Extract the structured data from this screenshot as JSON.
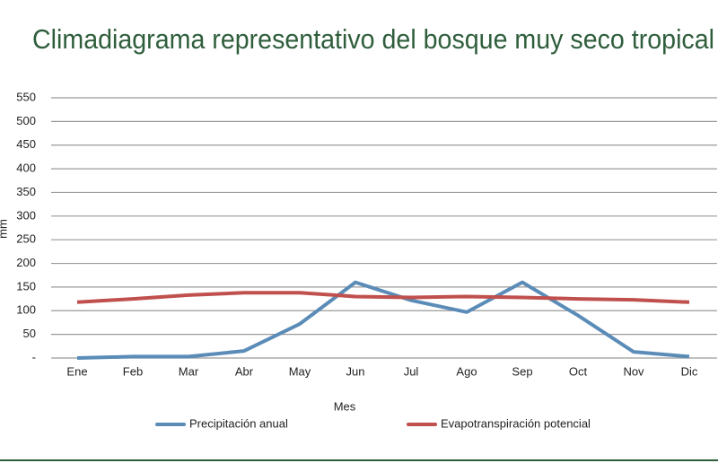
{
  "chart_data": {
    "type": "line",
    "title": "Climadiagrama representativo del bosque muy seco tropical",
    "x_label": "Mes",
    "y_label": "mm",
    "categories": [
      "Ene",
      "Feb",
      "Mar",
      "Abr",
      "May",
      "Jun",
      "Jul",
      "Ago",
      "Sep",
      "Oct",
      "Nov",
      "Dic"
    ],
    "series": [
      {
        "name": "Precipitación anual",
        "color": "#5b8cb8",
        "values": [
          0,
          3,
          3,
          15,
          72,
          160,
          122,
          97,
          160,
          90,
          13,
          3
        ]
      },
      {
        "name": "Evapotranspiración potencial",
        "color": "#c0504d",
        "values": [
          118,
          125,
          133,
          138,
          138,
          130,
          128,
          130,
          128,
          125,
          123,
          118
        ]
      }
    ],
    "ylim": [
      0,
      550
    ],
    "yticks": [
      {
        "value": 0,
        "label": "-"
      },
      50,
      100,
      150,
      200,
      250,
      300,
      350,
      400,
      450,
      500,
      550
    ],
    "grid": true,
    "legend": "bottom"
  }
}
